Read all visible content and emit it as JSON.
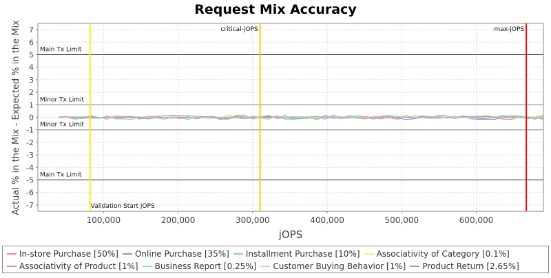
{
  "chart_data": {
    "type": "line",
    "title": "Request Mix Accuracy",
    "xlabel": "jOPS",
    "ylabel": "Actual % in the Mix - Expected % in the Mix",
    "xlim": [
      12000,
      690000
    ],
    "ylim": [
      -7.5,
      7.5
    ],
    "x_ticks": [
      "100,000",
      "200,000",
      "300,000",
      "400,000",
      "500,000",
      "600,000"
    ],
    "x_tick_values": [
      100000,
      200000,
      300000,
      400000,
      500000,
      600000
    ],
    "y_ticks": [
      7,
      6,
      5,
      4,
      3,
      2,
      1,
      0,
      -1,
      -2,
      -3,
      -4,
      -5,
      -6,
      -7
    ],
    "grid": true,
    "legend_position": "bottom",
    "threshold_lines": [
      {
        "label": "Main Tx Limit",
        "y": 5,
        "color": "#1f1f5a"
      },
      {
        "label": "Minor Tx Limit",
        "y": 1,
        "color": "#808080"
      },
      {
        "label": "Minor Tx Limit",
        "y": -1,
        "color": "#808080"
      },
      {
        "label": "Main Tx Limit",
        "y": -5,
        "color": "#1f1f5a"
      }
    ],
    "markers": [
      {
        "label": "Validation Start jOPS",
        "x": 82000,
        "color": "#ffee00"
      },
      {
        "label": "critical-jOPS",
        "x": 310000,
        "color": "#ffcc00"
      },
      {
        "label": "max-jOPS",
        "x": 667000,
        "color": "#ff0000"
      }
    ],
    "series": [
      {
        "name": "In-store Purchase [50%]",
        "color": "#ff7f7f"
      },
      {
        "name": "Online Purchase [35%]",
        "color": "#8f8fe0"
      },
      {
        "name": "Installment Purchase [10%]",
        "color": "#7fe07f"
      },
      {
        "name": "Associativity of Category [0.1%]",
        "color": "#f0f07f"
      },
      {
        "name": "Associativity of Product [1%]",
        "color": "#e07fe0"
      },
      {
        "name": "Business Report [0.25%]",
        "color": "#7fe0e0"
      },
      {
        "name": "Customer Buying Behavior [1%]",
        "color": "#f5c0c0"
      },
      {
        "name": "Product Return [2.65%]",
        "color": "#a0a0a0"
      }
    ]
  }
}
